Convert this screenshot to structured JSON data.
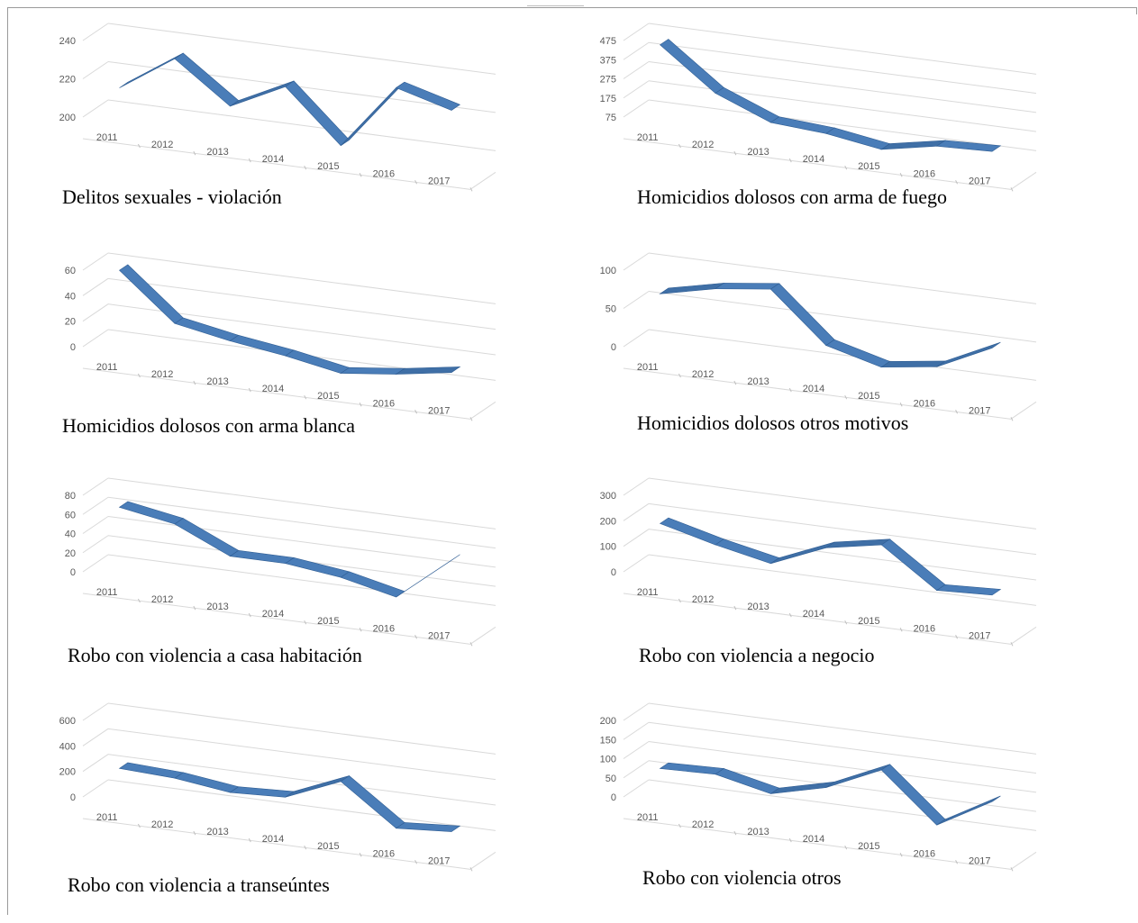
{
  "chart_data": [
    {
      "type": "line",
      "title": "Delitos sexuales - violación",
      "categories": [
        "2011",
        "2012",
        "2013",
        "2014",
        "2015",
        "2016",
        "2017"
      ],
      "values": [
        214,
        233,
        212,
        226,
        199,
        233,
        225
      ],
      "ylim": [
        200,
        240
      ],
      "yticks": [
        "240",
        "220",
        "200"
      ],
      "grid": true,
      "style": "3d-ribbon",
      "color": "#4a7db8"
    },
    {
      "type": "line",
      "title": "Homicidios dolosos con arma de fuego",
      "categories": [
        "2011",
        "2012",
        "2013",
        "2014",
        "2015",
        "2016",
        "2017"
      ],
      "values": [
        440,
        225,
        110,
        90,
        45,
        100,
        110
      ],
      "ylim": [
        75,
        475
      ],
      "yticks": [
        "475",
        "375",
        "275",
        "175",
        "75"
      ],
      "grid": true,
      "style": "3d-ribbon",
      "color": "#4a7db8"
    },
    {
      "type": "line",
      "title": "Homicidios dolosos con arma blanca",
      "categories": [
        "2011",
        "2012",
        "2013",
        "2014",
        "2015",
        "2016",
        "2017"
      ],
      "values": [
        58,
        22,
        14,
        8,
        0,
        5,
        12
      ],
      "ylim": [
        0,
        60
      ],
      "yticks": [
        "60",
        "40",
        "20",
        "0"
      ],
      "grid": true,
      "style": "3d-ribbon",
      "color": "#4a7db8"
    },
    {
      "type": "line",
      "title": "Homicidios dolosos otros motivos",
      "categories": [
        "2011",
        "2012",
        "2013",
        "2014",
        "2015",
        "2016",
        "2017"
      ],
      "values": [
        66,
        82,
        91,
        27,
        8,
        18,
        52
      ],
      "ylim": [
        0,
        100
      ],
      "yticks": [
        "100",
        "50",
        "0"
      ],
      "grid": true,
      "style": "3d-ribbon",
      "color": "#4a7db8"
    },
    {
      "type": "line",
      "title": "Robo con violencia a casa habitación",
      "categories": [
        "2011",
        "2012",
        "2013",
        "2014",
        "2015",
        "2016",
        "2017"
      ],
      "values": [
        65,
        55,
        29,
        29,
        22,
        9,
        55
      ],
      "ylim": [
        0,
        80
      ],
      "yticks": [
        "80",
        "60",
        "40",
        "20",
        "0"
      ],
      "grid": true,
      "style": "3d-ribbon",
      "color": "#4a7db8"
    },
    {
      "type": "line",
      "title": "Robo con violencia a negocio",
      "categories": [
        "2011",
        "2012",
        "2013",
        "2014",
        "2015",
        "2016",
        "2017"
      ],
      "values": [
        180,
        125,
        80,
        170,
        210,
        60,
        70
      ],
      "ylim": [
        0,
        300
      ],
      "yticks": [
        "300",
        "200",
        "100",
        "0"
      ],
      "grid": true,
      "style": "3d-ribbon",
      "color": "#4a7db8"
    },
    {
      "type": "line",
      "title": "Robo con violencia a transeúntes",
      "categories": [
        "2011",
        "2012",
        "2013",
        "2014",
        "2015",
        "2016",
        "2017"
      ],
      "values": [
        205,
        185,
        130,
        150,
        330,
        20,
        50
      ],
      "ylim": [
        0,
        600
      ],
      "yticks": [
        "600",
        "400",
        "200",
        "0"
      ],
      "grid": true,
      "style": "3d-ribbon",
      "color": "#4a7db8"
    },
    {
      "type": "line",
      "title": "Robo con violencia otros",
      "categories": [
        "2011",
        "2012",
        "2013",
        "2014",
        "2015",
        "2016",
        "2017"
      ],
      "values": [
        68,
        72,
        40,
        75,
        140,
        15,
        95
      ],
      "ylim": [
        0,
        200
      ],
      "yticks": [
        "200",
        "150",
        "100",
        "50",
        "0"
      ],
      "grid": true,
      "style": "3d-ribbon",
      "color": "#4a7db8"
    }
  ]
}
